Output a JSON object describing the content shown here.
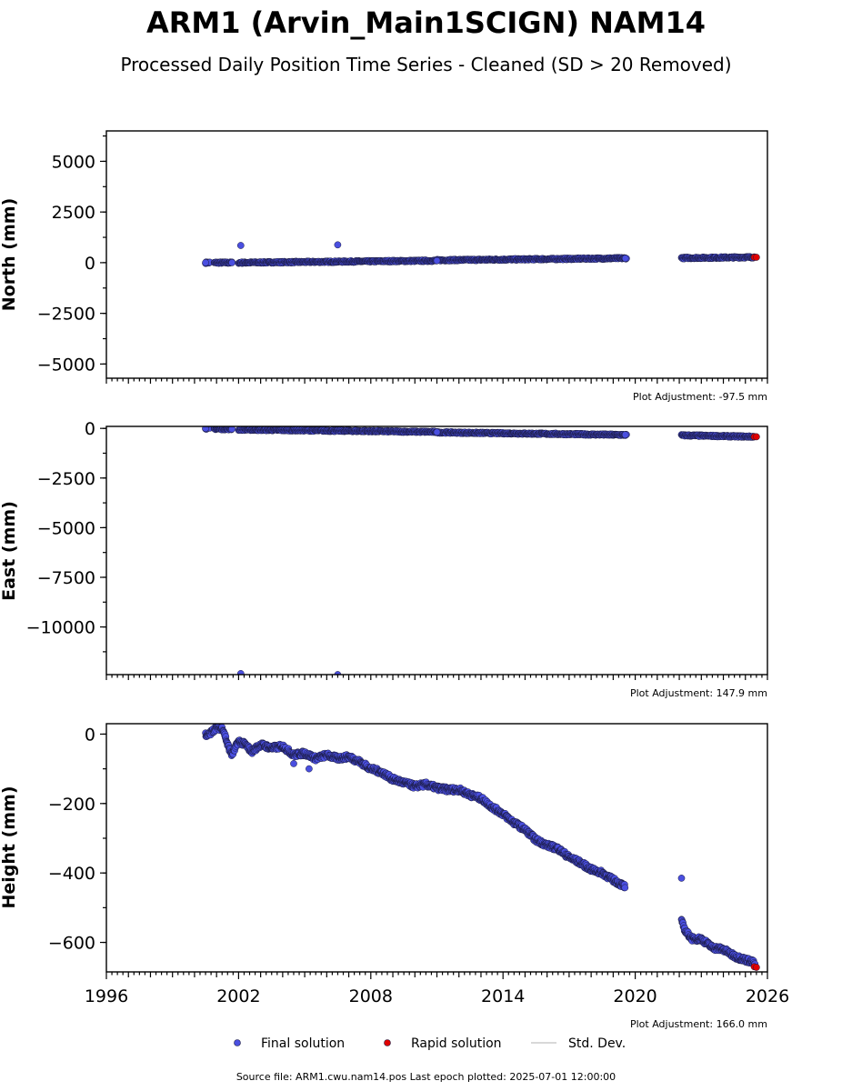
{
  "figure": {
    "title": "ARM1 (Arvin_Main1SCIGN) NAM14",
    "subtitle": "Processed Daily Position Time Series - Cleaned (SD > 20 Removed)",
    "source": "Source file: ARM1.cwu.nam14.pos  Last epoch plotted: 2025-07-01 12:00:00"
  },
  "legend": {
    "final": "Final solution",
    "rapid": "Rapid solution",
    "std": "Std. Dev."
  },
  "colors": {
    "final_fill": "#4a4fe0",
    "final_edge": "#1a1a40",
    "rapid_fill": "#e00000",
    "std_line": "#cccccc"
  },
  "chart_data": [
    {
      "type": "scatter",
      "ylabel": "North (mm)",
      "xlim": [
        1996,
        2026
      ],
      "ylim": [
        -5700,
        6500
      ],
      "yticks": [
        5000,
        2500,
        0,
        -2500,
        -5000
      ],
      "ytick_labels": [
        "5000",
        "2500",
        "0",
        "−2500",
        "−5000"
      ],
      "adjustment": "Plot Adjustment: -97.5 mm",
      "final_segments": [
        [
          2000.5,
          2000.7,
          0,
          0
        ],
        [
          2000.9,
          2001.7,
          0,
          0
        ],
        [
          2002.0,
          2011.0,
          0,
          100
        ],
        [
          2011.0,
          2019.6,
          120,
          220
        ],
        [
          2022.1,
          2025.4,
          230,
          270
        ]
      ],
      "final_points": [
        [
          2002.1,
          850
        ],
        [
          2006.5,
          880
        ],
        [
          2000.5,
          0
        ],
        [
          2001.7,
          0
        ],
        [
          2011.0,
          100
        ],
        [
          2019.55,
          210
        ]
      ],
      "rapid_points": [
        [
          2025.4,
          265
        ],
        [
          2025.5,
          265
        ]
      ]
    },
    {
      "type": "scatter",
      "ylabel": "East (mm)",
      "xlim": [
        1996,
        2026
      ],
      "ylim": [
        -12400,
        100
      ],
      "yticks": [
        0,
        -2500,
        -5000,
        -7500,
        -10000
      ],
      "ytick_labels": [
        "0",
        "−2500",
        "−5000",
        "−7500",
        "−10000"
      ],
      "adjustment": "Plot Adjustment: 147.9 mm",
      "final_segments": [
        [
          2000.5,
          2000.7,
          0,
          0
        ],
        [
          2000.9,
          2001.7,
          -20,
          -40
        ],
        [
          2002.0,
          2011.0,
          -60,
          -180
        ],
        [
          2011.0,
          2019.6,
          -200,
          -330
        ],
        [
          2022.1,
          2025.4,
          -350,
          -420
        ]
      ],
      "final_points": [
        [
          2002.1,
          -12350
        ],
        [
          2006.5,
          -12400
        ],
        [
          2000.5,
          0
        ],
        [
          2011.0,
          -190
        ],
        [
          2019.55,
          -320
        ]
      ],
      "rapid_points": [
        [
          2025.4,
          -420
        ],
        [
          2025.5,
          -420
        ]
      ]
    },
    {
      "type": "scatter",
      "ylabel": "Height (mm)",
      "xlim": [
        1996,
        2026
      ],
      "ylim": [
        -685,
        30
      ],
      "yticks": [
        0,
        -200,
        -400,
        -600
      ],
      "ytick_labels": [
        "0",
        "−200",
        "−400",
        "−600"
      ],
      "xticks": [
        1996,
        2002,
        2008,
        2014,
        2020,
        2026
      ],
      "xtick_labels": [
        "1996",
        "2002",
        "2008",
        "2014",
        "2020",
        "2026"
      ],
      "adjustment": "Plot Adjustment: 166.0 mm",
      "height_path": [
        [
          2000.5,
          0
        ],
        [
          2000.6,
          -5
        ],
        [
          2001.0,
          20
        ],
        [
          2001.3,
          15
        ],
        [
          2001.5,
          -30
        ],
        [
          2001.7,
          -60
        ],
        [
          2002.0,
          -20
        ],
        [
          2002.3,
          -30
        ],
        [
          2002.6,
          -50
        ],
        [
          2003.0,
          -30
        ],
        [
          2003.5,
          -40
        ],
        [
          2004.0,
          -35
        ],
        [
          2004.5,
          -60
        ],
        [
          2005.0,
          -55
        ],
        [
          2005.5,
          -70
        ],
        [
          2006.0,
          -60
        ],
        [
          2006.5,
          -70
        ],
        [
          2007.0,
          -65
        ],
        [
          2007.5,
          -80
        ],
        [
          2008.0,
          -100
        ],
        [
          2008.5,
          -110
        ],
        [
          2009.0,
          -130
        ],
        [
          2009.5,
          -140
        ],
        [
          2010.0,
          -150
        ],
        [
          2010.5,
          -145
        ],
        [
          2011.0,
          -155
        ],
        [
          2011.5,
          -160
        ],
        [
          2012.0,
          -160
        ],
        [
          2012.5,
          -175
        ],
        [
          2013.0,
          -185
        ],
        [
          2013.5,
          -210
        ],
        [
          2014.0,
          -230
        ],
        [
          2014.5,
          -255
        ],
        [
          2015.0,
          -275
        ],
        [
          2015.5,
          -305
        ],
        [
          2016.0,
          -320
        ],
        [
          2016.5,
          -330
        ],
        [
          2017.0,
          -355
        ],
        [
          2017.5,
          -370
        ],
        [
          2018.0,
          -390
        ],
        [
          2018.5,
          -400
        ],
        [
          2019.0,
          -420
        ],
        [
          2019.55,
          -440
        ]
      ],
      "height_path2": [
        [
          2022.1,
          -540
        ],
        [
          2022.3,
          -570
        ],
        [
          2022.6,
          -590
        ],
        [
          2023.0,
          -590
        ],
        [
          2023.5,
          -615
        ],
        [
          2024.0,
          -620
        ],
        [
          2024.5,
          -640
        ],
        [
          2025.0,
          -650
        ],
        [
          2025.3,
          -655
        ],
        [
          2025.45,
          -665
        ]
      ],
      "final_points": [
        [
          2022.1,
          -415
        ],
        [
          2004.5,
          -85
        ],
        [
          2005.2,
          -100
        ]
      ],
      "rapid_points": [
        [
          2025.4,
          -670
        ],
        [
          2025.5,
          -672
        ]
      ]
    }
  ]
}
